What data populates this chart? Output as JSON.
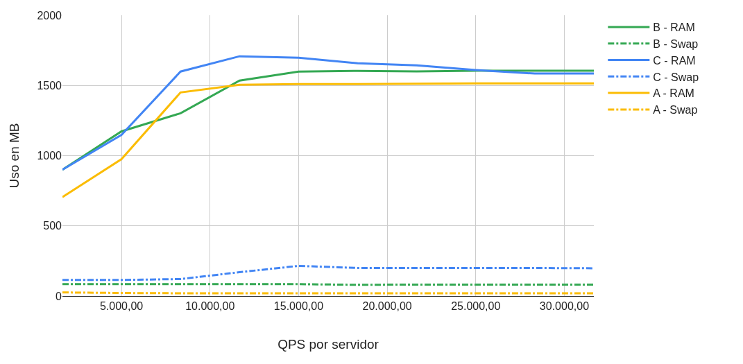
{
  "chart_data": {
    "type": "line",
    "xlabel": "QPS por servidor",
    "ylabel": "Uso en MB",
    "x": [
      1667,
      5000,
      8333,
      11667,
      15000,
      18333,
      21667,
      25000,
      28333,
      31667
    ],
    "xlim": [
      1667,
      31667
    ],
    "xticks": [
      {
        "value": 5000,
        "label": "5.000,00"
      },
      {
        "value": 10000,
        "label": "10.000,00"
      },
      {
        "value": 15000,
        "label": "15.000,00"
      },
      {
        "value": 20000,
        "label": "20.000,00"
      },
      {
        "value": 25000,
        "label": "25.000,00"
      },
      {
        "value": 30000,
        "label": "30.000,00"
      }
    ],
    "ylim": [
      0,
      2000
    ],
    "yticks": [
      0,
      500,
      1000,
      1500,
      2000
    ],
    "grid": true,
    "legend": "right",
    "series": [
      {
        "name": "B - RAM",
        "color": "#34a853",
        "line_style": "solid",
        "values": [
          900,
          1173,
          1302,
          1535,
          1599,
          1604,
          1600,
          1605,
          1605,
          1605
        ]
      },
      {
        "name": "B - Swap",
        "color": "#34a853",
        "line_style": "dashdot",
        "values": [
          85,
          85,
          85,
          85,
          85,
          80,
          82,
          82,
          82,
          82
        ]
      },
      {
        "name": "C - RAM",
        "color": "#4285f4",
        "line_style": "solid",
        "values": [
          900,
          1148,
          1599,
          1708,
          1698,
          1658,
          1643,
          1610,
          1585,
          1585
        ]
      },
      {
        "name": "C - Swap",
        "color": "#4285f4",
        "line_style": "dashdot",
        "values": [
          115,
          115,
          121,
          170,
          215,
          200,
          200,
          200,
          200,
          198
        ]
      },
      {
        "name": "A - RAM",
        "color": "#fbbc04",
        "line_style": "solid",
        "values": [
          705,
          975,
          1450,
          1505,
          1510,
          1510,
          1512,
          1515,
          1515,
          1515
        ]
      },
      {
        "name": "A - Swap",
        "color": "#fbbc04",
        "line_style": "dashdot",
        "values": [
          26,
          22,
          20,
          20,
          20,
          20,
          20,
          20,
          20,
          20
        ]
      }
    ]
  }
}
